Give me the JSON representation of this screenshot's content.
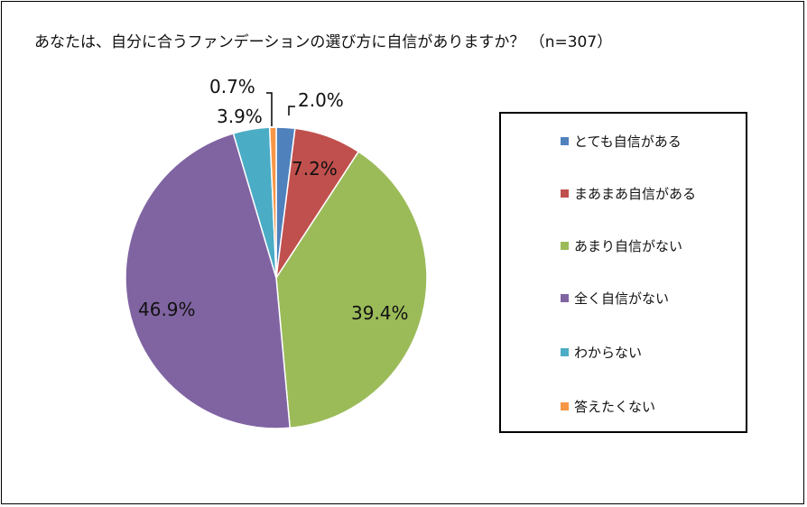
{
  "chart_data": {
    "type": "pie",
    "title": "あなたは、自分に合うファンデーションの選び方に自信がありますか？ （n=307）",
    "slices": [
      {
        "label": "とても自信がある",
        "value": 2.0,
        "value_label": "2.0%",
        "color": "#4F81BD"
      },
      {
        "label": "まあまあ自信がある",
        "value": 7.2,
        "value_label": "7.2%",
        "color": "#C0504D"
      },
      {
        "label": "あまり自信がない",
        "value": 39.4,
        "value_label": "39.4%",
        "color": "#9BBB59"
      },
      {
        "label": "全く自信がない",
        "value": 46.9,
        "value_label": "46.9%",
        "color": "#8064A2"
      },
      {
        "label": "わからない",
        "value": 3.9,
        "value_label": "3.9%",
        "color": "#4BACC6"
      },
      {
        "label": "答えたくない",
        "value": 0.7,
        "value_label": "0.7%",
        "color": "#F79646"
      }
    ],
    "legend_position": "right"
  }
}
